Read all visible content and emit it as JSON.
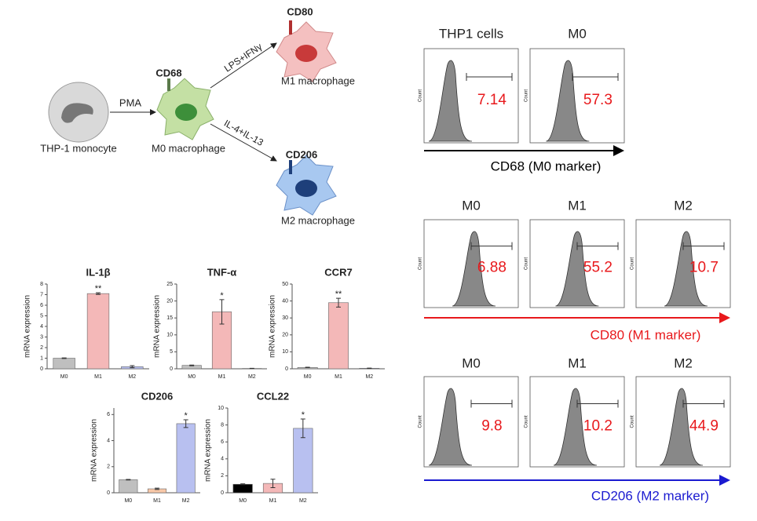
{
  "diagram": {
    "nodes": [
      {
        "label": "THP-1 monocyte"
      },
      {
        "label": "M0 macrophage",
        "marker": "CD68"
      },
      {
        "label": "M1 macrophage",
        "marker": "CD80"
      },
      {
        "label": "M2 macrophage",
        "marker": "CD206"
      }
    ],
    "edges": [
      {
        "label": "PMA"
      },
      {
        "label": "LPS+IFNγ"
      },
      {
        "label": "IL-4+IL-13"
      }
    ]
  },
  "flow": {
    "count_label": "Count",
    "groups": [
      {
        "axis_label": "CD68 (M0 marker)",
        "color": "#000000",
        "panels": [
          {
            "title": "THP1 cells",
            "percent": "7.14"
          },
          {
            "title": "M0",
            "percent": "57.3"
          }
        ]
      },
      {
        "axis_label": "CD80 (M1 marker)",
        "color": "#e8191c",
        "panels": [
          {
            "title": "M0",
            "percent": "6.88"
          },
          {
            "title": "M1",
            "percent": "55.2"
          },
          {
            "title": "M2",
            "percent": "10.7"
          }
        ]
      },
      {
        "axis_label": "CD206 (M2 marker)",
        "color": "#1a1ad0",
        "panels": [
          {
            "title": "M0",
            "percent": "9.8"
          },
          {
            "title": "M1",
            "percent": "10.2"
          },
          {
            "title": "M2",
            "percent": "44.9"
          }
        ]
      }
    ]
  },
  "chart_data": [
    {
      "type": "bar",
      "title": "IL-1β",
      "ylabel": "mRNA expression",
      "categories": [
        "M0",
        "M1",
        "M2"
      ],
      "values": [
        1,
        7.1,
        0.2
      ],
      "errors": [
        0.03,
        0.08,
        0.1
      ],
      "significance": [
        null,
        "**",
        null
      ],
      "colors": [
        "#bfbfbf",
        "#f4b8b8",
        "#b8c0f0"
      ],
      "ylim": [
        0,
        8
      ],
      "yticks": [
        0,
        1,
        2,
        3,
        4,
        5,
        6,
        7,
        8
      ]
    },
    {
      "type": "bar",
      "title": "TNF-α",
      "ylabel": "mRNA expression",
      "categories": [
        "M0",
        "M1",
        "M2"
      ],
      "values": [
        1,
        16.8,
        0.1
      ],
      "errors": [
        0.1,
        3.6,
        0.05
      ],
      "significance": [
        null,
        "*",
        null
      ],
      "colors": [
        "#bfbfbf",
        "#f4b8b8",
        "#b8c0f0"
      ],
      "ylim": [
        0,
        25
      ],
      "yticks": [
        0,
        5,
        10,
        15,
        20,
        25
      ]
    },
    {
      "type": "bar",
      "title": "CCR7",
      "ylabel": "mRNA expression",
      "categories": [
        "M0",
        "M1",
        "M2"
      ],
      "values": [
        0.8,
        39,
        0.3
      ],
      "errors": [
        0.1,
        2.6,
        0.1
      ],
      "significance": [
        null,
        "**",
        null
      ],
      "colors": [
        "#bfbfbf",
        "#f4b8b8",
        "#b8c0f0"
      ],
      "ylim": [
        0,
        50
      ],
      "yticks": [
        0,
        10,
        20,
        30,
        40,
        50
      ]
    },
    {
      "type": "bar",
      "title": "CD206",
      "ylabel": "mRNA expression",
      "categories": [
        "M0",
        "M1",
        "M2"
      ],
      "values": [
        1,
        0.3,
        5.3
      ],
      "errors": [
        0.02,
        0.05,
        0.3
      ],
      "significance": [
        null,
        null,
        "*"
      ],
      "colors": [
        "#bfbfbf",
        "#f8c8a8",
        "#b8c0f0"
      ],
      "ylim": [
        0,
        6.5
      ],
      "yticks": [
        0,
        2,
        4,
        6
      ]
    },
    {
      "type": "bar",
      "title": "CCL22",
      "ylabel": "mRNA expression",
      "categories": [
        "M0",
        "M1",
        "M2"
      ],
      "values": [
        1,
        1.1,
        7.6
      ],
      "errors": [
        0.05,
        0.5,
        1.1
      ],
      "significance": [
        null,
        null,
        "*"
      ],
      "colors": [
        "#000000",
        "#f4b8b8",
        "#b8c0f0"
      ],
      "ylim": [
        0,
        10
      ],
      "yticks": [
        0,
        2,
        4,
        6,
        8,
        10
      ]
    }
  ]
}
